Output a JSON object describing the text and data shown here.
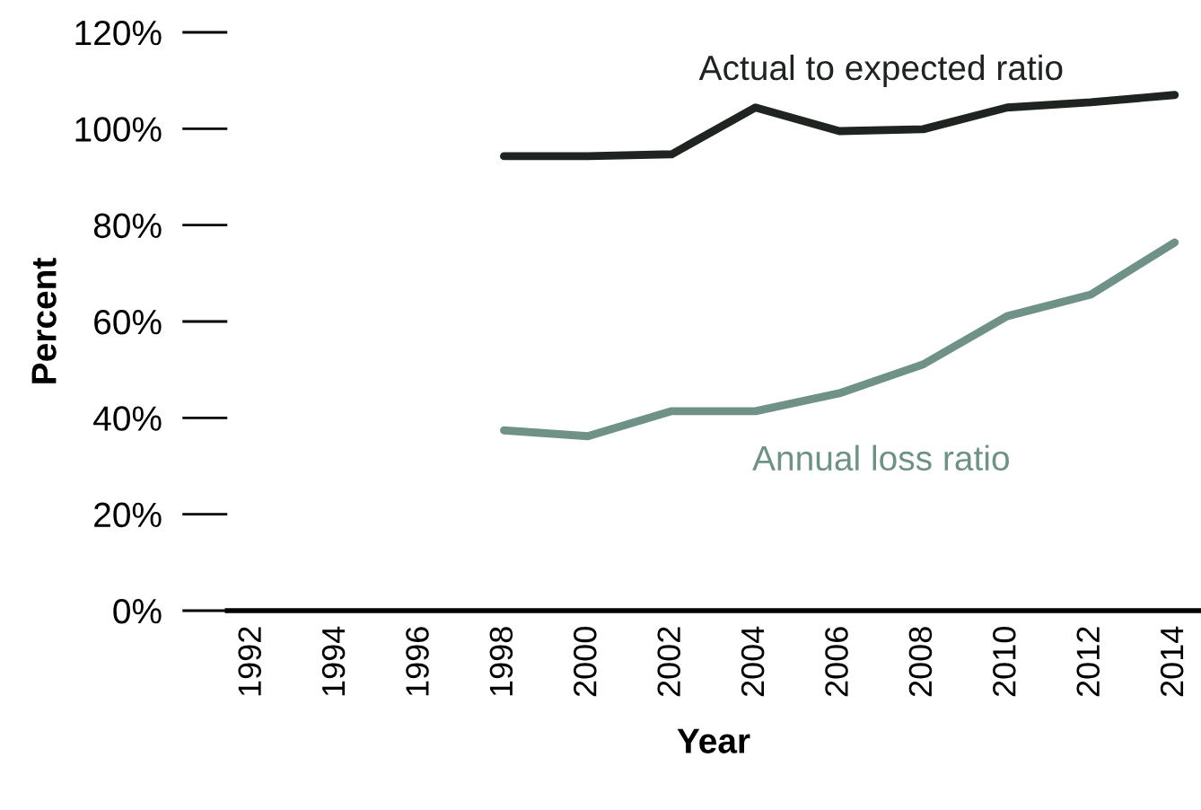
{
  "chart_data": {
    "type": "line",
    "xlabel": "Year",
    "ylabel": "Percent",
    "categories": [
      "1992",
      "1994",
      "1996",
      "1998",
      "2000",
      "2002",
      "2004",
      "2006",
      "2008",
      "2010",
      "2012",
      "2014"
    ],
    "series": [
      {
        "name": "Actual to expected ratio",
        "color": "#1f2421",
        "values": [
          null,
          null,
          null,
          94.3,
          94.3,
          94.7,
          104.4,
          99.5,
          99.9,
          104.4,
          105.5,
          107
        ]
      },
      {
        "name": "Annual loss ratio",
        "color": "#6f9187",
        "values": [
          null,
          null,
          null,
          37.4,
          36.2,
          41.4,
          41.4,
          45.1,
          51.1,
          61.1,
          65.6,
          76.4
        ]
      }
    ],
    "ylim": [
      0,
      120
    ],
    "yticks": [
      {
        "value": 0,
        "label": "0%"
      },
      {
        "value": 20,
        "label": "20%"
      },
      {
        "value": 40,
        "label": "40%"
      },
      {
        "value": 60,
        "label": "60%"
      },
      {
        "value": 80,
        "label": "80%"
      },
      {
        "value": 100,
        "label": "100%"
      },
      {
        "value": 120,
        "label": "120%"
      }
    ],
    "grid": false,
    "legend": false,
    "marker": "none",
    "line_style": "solid"
  }
}
